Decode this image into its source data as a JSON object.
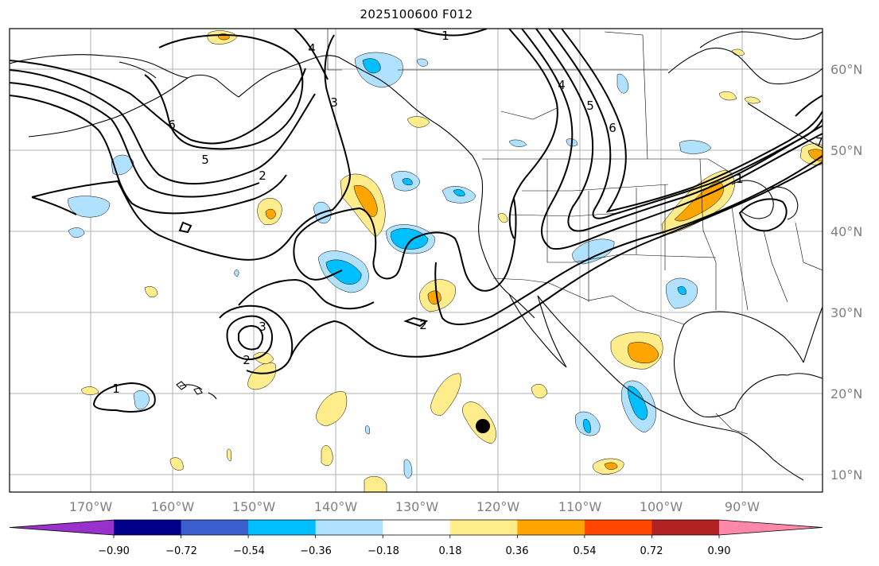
{
  "title": "2025100600 F012",
  "map": {
    "lat_labels": [
      "60°N",
      "50°N",
      "40°N",
      "30°N",
      "20°N",
      "10°N"
    ],
    "lon_labels": [
      "170°W",
      "160°W",
      "150°W",
      "140°W",
      "130°W",
      "120°W",
      "110°W",
      "100°W",
      "90°W"
    ],
    "contour_labels": [
      "1",
      "2",
      "3",
      "4",
      "5",
      "6",
      "1",
      "2",
      "3",
      "2",
      "1",
      "4",
      "5",
      "6",
      "7"
    ],
    "marker": "storm-center-dot"
  },
  "colorbar": {
    "tick_labels": [
      "−0.90",
      "−0.72",
      "−0.54",
      "−0.36",
      "−0.18",
      "0.18",
      "0.36",
      "0.54",
      "0.72",
      "0.90"
    ],
    "colors": [
      "#9932cc",
      "#00008b",
      "#3a5fcd",
      "#00bfff",
      "#b0e2ff",
      "#ffffff",
      "#ffec8b",
      "#ffa500",
      "#ff4500",
      "#b22222",
      "#ff88aa"
    ]
  }
}
